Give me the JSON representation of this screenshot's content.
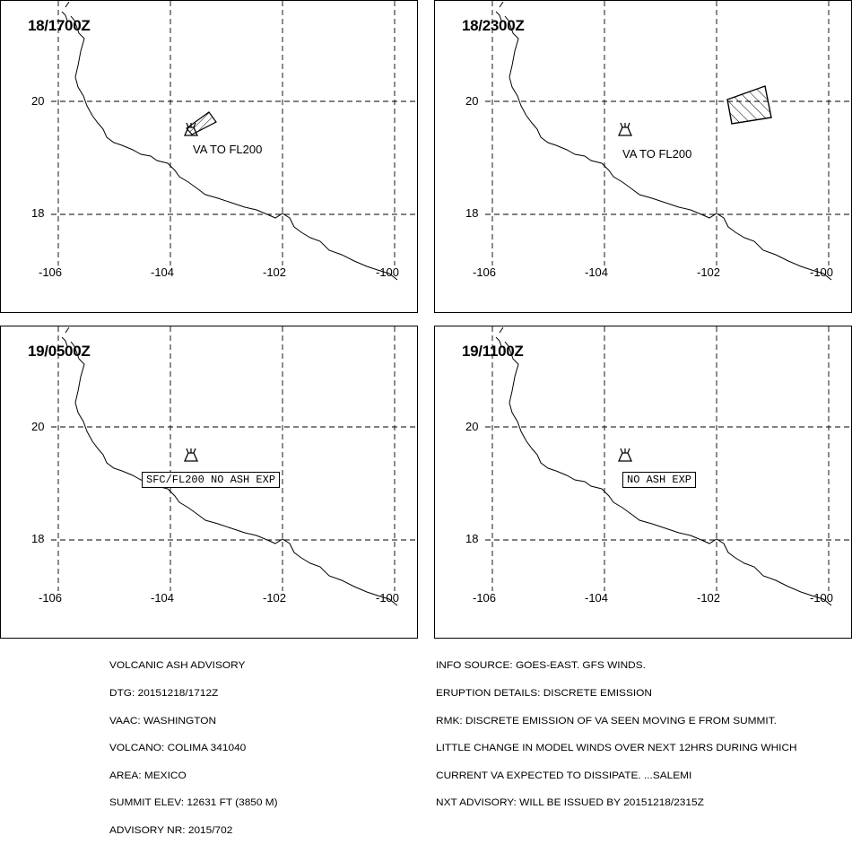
{
  "panels": [
    {
      "time": "18/1700Z",
      "annotation": "VA TO FL200",
      "annotation_style": "plain"
    },
    {
      "time": "18/2300Z",
      "annotation": "VA TO FL200",
      "annotation_style": "plain"
    },
    {
      "time": "19/0500Z",
      "annotation": "SFC/FL200 NO ASH EXP",
      "annotation_style": "boxed"
    },
    {
      "time": "19/1100Z",
      "annotation": "NO ASH EXP",
      "annotation_style": "boxed"
    }
  ],
  "grid": {
    "lat_labels": [
      "20",
      "18"
    ],
    "lon_labels": [
      "-106",
      "-104",
      "-102",
      "-100"
    ]
  },
  "advisory_left": [
    "VOLCANIC ASH ADVISORY",
    "DTG: 20151218/1712Z",
    "VAAC: WASHINGTON",
    "VOLCANO: COLIMA 341040",
    "AREA: MEXICO",
    "SUMMIT ELEV: 12631 FT (3850 M)",
    "ADVISORY NR: 2015/702"
  ],
  "advisory_right": [
    "INFO SOURCE: GOES-EAST. GFS WINDS.",
    "ERUPTION DETAILS: DISCRETE EMISSION",
    "RMK: DISCRETE EMISSION OF VA SEEN MOVING E FROM SUMMIT.",
    "LITTLE CHANGE IN MODEL WINDS OVER NEXT 12HRS DURING WHICH",
    "CURRENT VA EXPECTED TO DISSIPATE. ...SALEMI",
    "NXT ADVISORY: WILL BE ISSUED BY 20151218/2315Z"
  ],
  "icons": {
    "volcano": "volcano-icon",
    "ash_area": "ash-cloud-hatched-polygon"
  }
}
